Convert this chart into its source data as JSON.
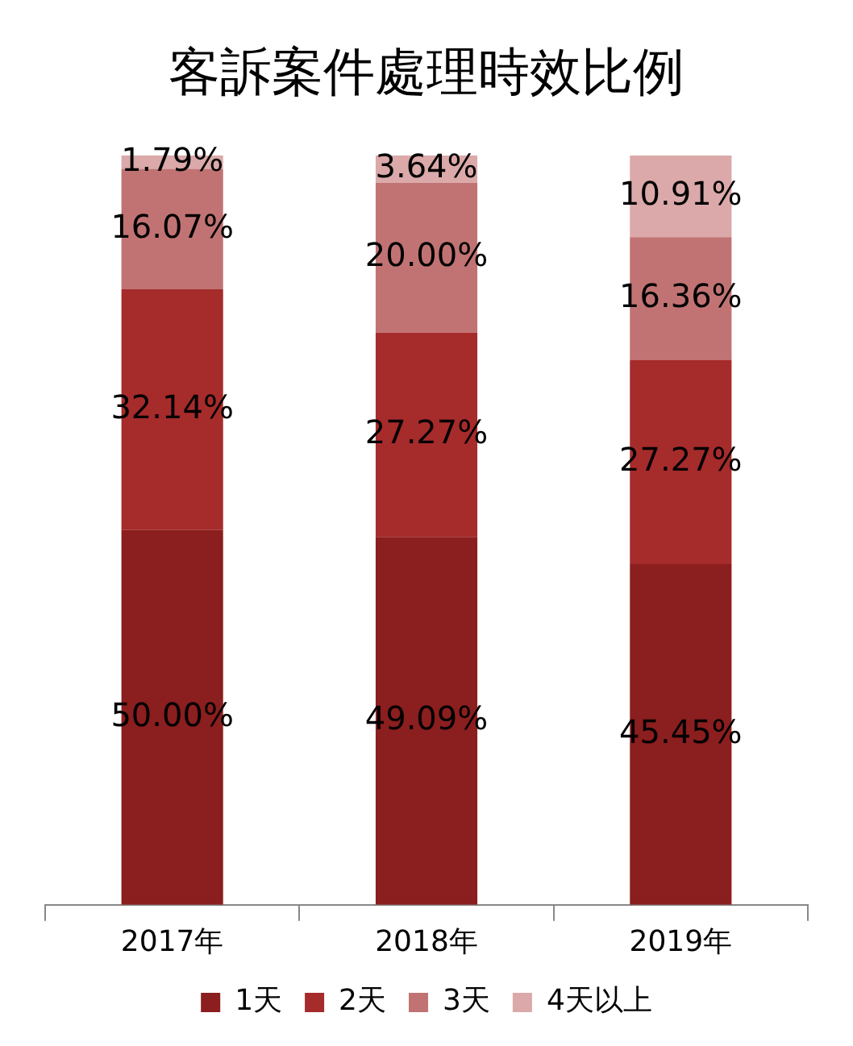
{
  "chart_data": {
    "type": "bar",
    "title": "客訴案件處理時效比例",
    "categories": [
      "2017年",
      "2018年",
      "2019年"
    ],
    "stacked": true,
    "ylim": [
      0,
      100
    ],
    "tick_labels": "x",
    "grid": false,
    "legend": "bottom",
    "series": [
      {
        "name": "1天",
        "color": "#8b1e1e",
        "values": [
          50,
          49.09,
          45.45
        ],
        "value_labels": [
          "50.00%",
          "49.09%",
          "45.45%"
        ]
      },
      {
        "name": "2天",
        "color": "#a62b2b",
        "values": [
          32.14,
          27.27,
          27.27
        ],
        "value_labels": [
          "32.14%",
          "27.27%",
          "27.27%"
        ]
      },
      {
        "name": "3天",
        "color": "#c17373",
        "values": [
          16.07,
          20,
          16.36
        ],
        "value_labels": [
          "16.07%",
          "20.00%",
          "16.36%"
        ]
      },
      {
        "name": "4天以上",
        "color": "#dba9a9",
        "values": [
          1.79,
          3.64,
          10.91
        ],
        "value_labels": [
          "1.79%",
          "3.64%",
          "10.91%"
        ]
      }
    ]
  }
}
